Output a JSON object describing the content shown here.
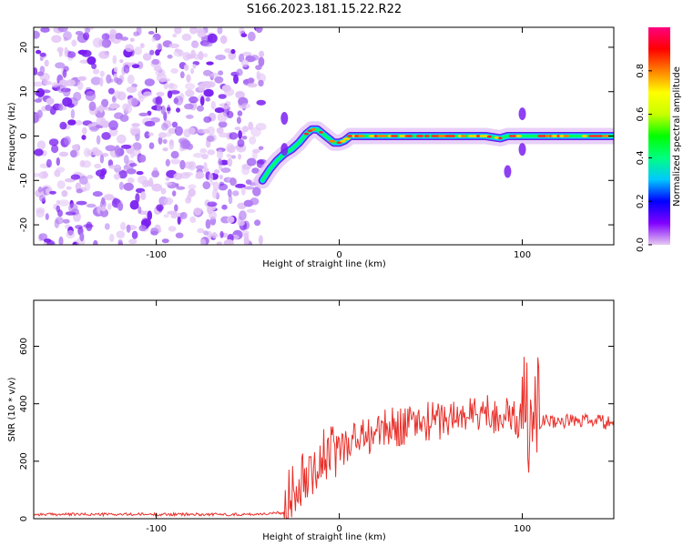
{
  "title": "S166.2023.181.15.22.R22",
  "chart_data": [
    {
      "type": "heatmap",
      "xlabel": "Height of straight line (km)",
      "ylabel": "Frequency (Hz)",
      "xlim": [
        -167,
        150
      ],
      "ylim": [
        -24.5,
        24.5
      ],
      "xticks": [
        -100,
        0,
        100
      ],
      "yticks": [
        -20,
        -10,
        0,
        10,
        20
      ],
      "grid": false,
      "noise_region_x": [
        -167,
        -42
      ],
      "ridge": {
        "x": [
          -42,
          -38,
          -34,
          -30,
          -26,
          -22,
          -18,
          -15,
          -12,
          -9,
          -6,
          -3,
          0,
          3,
          6,
          10,
          20,
          30,
          40,
          50,
          60,
          70,
          80,
          88,
          92,
          96,
          100,
          104,
          110,
          120,
          130,
          140,
          150
        ],
        "freq": [
          -10,
          -7.5,
          -5.5,
          -4,
          -3,
          -1.5,
          0.5,
          1.5,
          1.5,
          0.5,
          -0.5,
          -1.5,
          -1.5,
          -1,
          0,
          0,
          0,
          0,
          0,
          0,
          0,
          0,
          0,
          -0.5,
          0,
          0,
          0,
          0,
          0,
          0,
          0,
          0,
          0
        ]
      },
      "colorbar": {
        "label": "Normalized spectral amplitude",
        "range": [
          0.0,
          1.0
        ],
        "ticks": [
          "0.0",
          "0.2",
          "0.4",
          "0.6",
          "0.8"
        ],
        "tick_values": [
          0.0,
          0.2,
          0.4,
          0.6,
          0.8
        ],
        "colors": [
          "#e6c8f0",
          "#8000ff",
          "#0000ff",
          "#00c8ff",
          "#00ff80",
          "#00ff00",
          "#c8ff00",
          "#ffff00",
          "#ff8000",
          "#ff0000",
          "#ff0080"
        ]
      }
    },
    {
      "type": "line",
      "xlabel": "Height of straight line (km)",
      "ylabel": "SNR (10 * v/v)",
      "xlim": [
        -167,
        150
      ],
      "ylim": [
        0,
        760
      ],
      "xticks": [
        -100,
        0,
        100
      ],
      "yticks": [
        0,
        200,
        400,
        600
      ],
      "grid": false,
      "color": "#e8302a",
      "x": [
        -167,
        -150,
        -130,
        -110,
        -90,
        -70,
        -50,
        -30,
        -25,
        -20,
        -15,
        -10,
        -5,
        0,
        10,
        20,
        30,
        40,
        50,
        60,
        70,
        80,
        90,
        95,
        100,
        102,
        104,
        106,
        108,
        110,
        120,
        130,
        140,
        150
      ],
      "y": [
        15,
        15,
        15,
        15,
        15,
        15,
        15,
        20,
        120,
        160,
        190,
        200,
        220,
        250,
        280,
        300,
        320,
        330,
        340,
        350,
        360,
        370,
        360,
        350,
        330,
        500,
        300,
        550,
        400,
        340,
        340,
        340,
        340,
        330
      ]
    }
  ]
}
